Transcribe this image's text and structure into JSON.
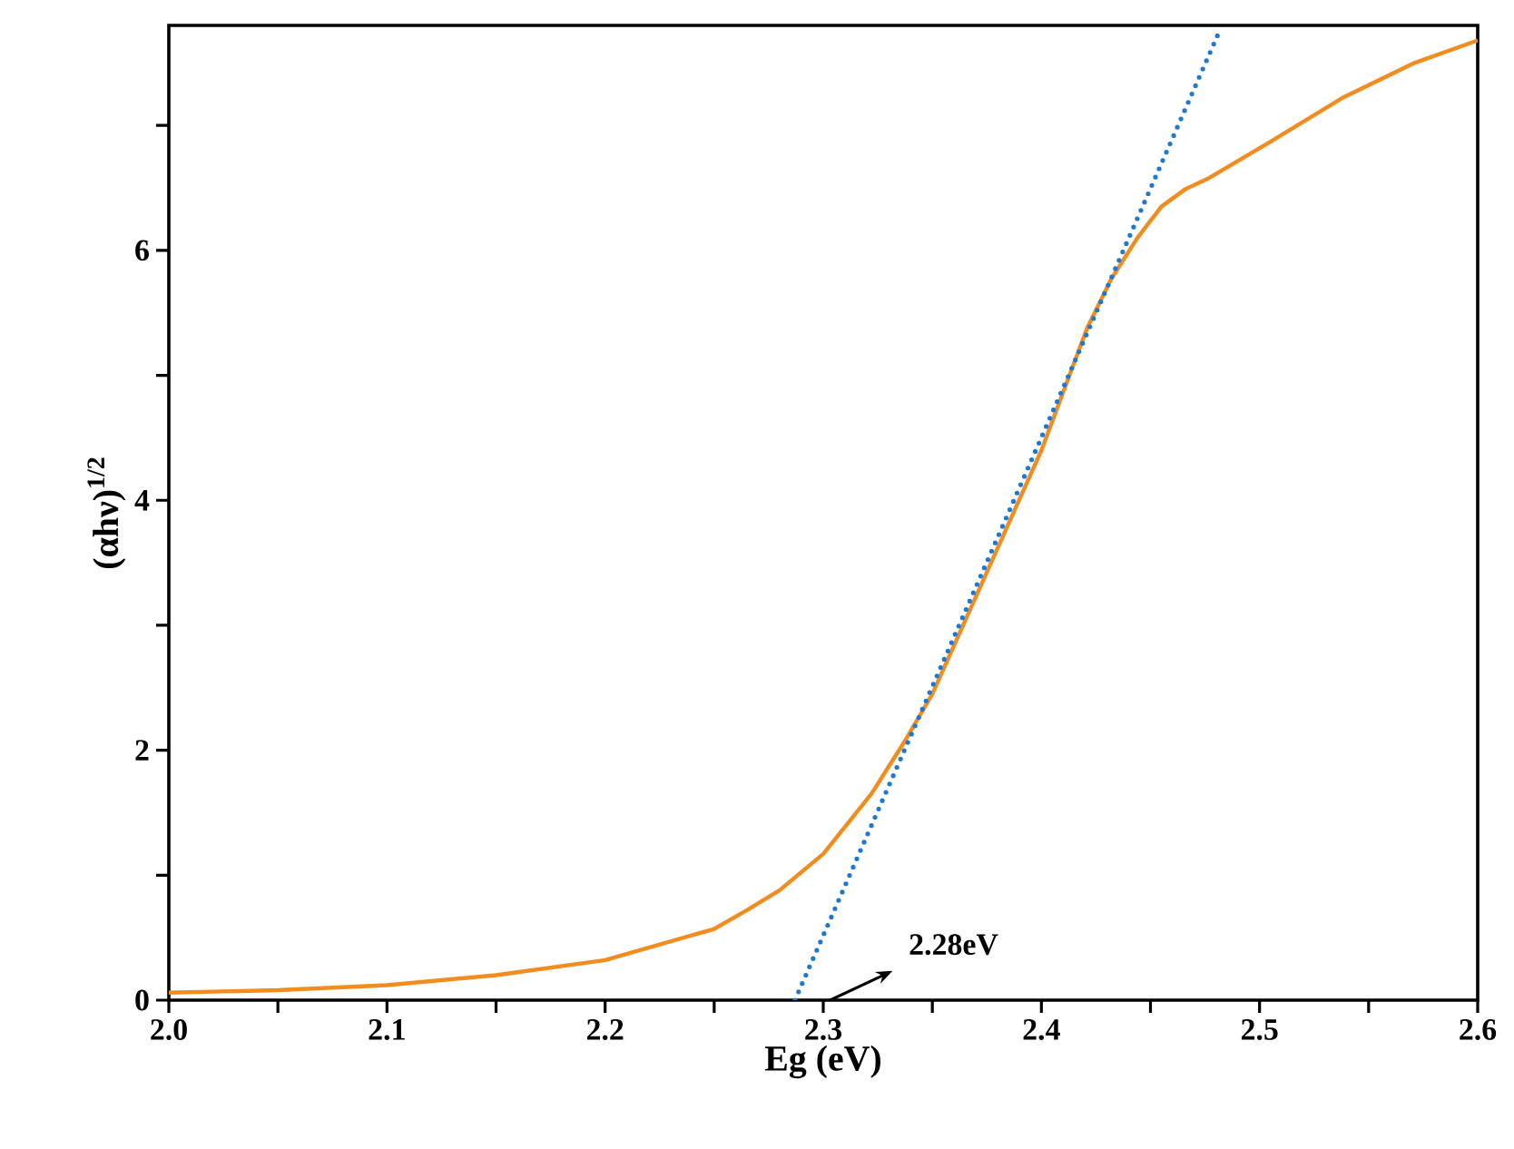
{
  "chart_data": {
    "type": "line",
    "xlabel": "Eg (eV)",
    "ylabel": "(αhν)$^{1/2}$",
    "xlim": [
      2.0,
      2.6
    ],
    "ylim": [
      0,
      7.8
    ],
    "xticks": [
      {
        "value": 2.0,
        "label": "2.0"
      },
      {
        "value": 2.05,
        "label": null
      },
      2.1,
      {
        "value": 2.15,
        "label": null
      },
      2.2,
      {
        "value": 2.25,
        "label": null
      },
      2.3,
      {
        "value": 2.35,
        "label": null
      },
      2.4,
      {
        "value": 2.45,
        "label": null
      },
      2.5,
      {
        "value": 2.55,
        "label": null
      },
      2.6
    ],
    "yticks": [
      0,
      {
        "value": 1,
        "label": null
      },
      2,
      {
        "value": 3,
        "label": null
      },
      4,
      {
        "value": 5,
        "label": null
      },
      6,
      {
        "value": 7,
        "label": null
      }
    ],
    "series": [
      {
        "color": "#f28c1e",
        "line_style": "solid",
        "x": [
          2.0,
          2.05,
          2.1,
          2.15,
          2.2,
          2.25,
          2.265,
          2.28,
          2.3,
          2.322,
          2.338,
          2.35,
          2.4,
          2.421,
          2.432,
          2.444,
          2.455,
          2.466,
          2.477,
          2.505,
          2.538,
          2.571,
          2.6
        ],
        "values": [
          0.06,
          0.08,
          0.12,
          0.2,
          0.32,
          0.57,
          0.72,
          0.88,
          1.17,
          1.65,
          2.09,
          2.45,
          4.4,
          5.38,
          5.77,
          6.1,
          6.35,
          6.49,
          6.58,
          6.87,
          7.22,
          7.5,
          7.68
        ]
      },
      {
        "color": "#1f78d0",
        "line_style": "dotted",
        "x": [
          2.287,
          2.482
        ],
        "values": [
          0,
          7.77
        ]
      }
    ],
    "annotations": [
      "2.28eV"
    ],
    "grid": false,
    "marker": "none"
  }
}
